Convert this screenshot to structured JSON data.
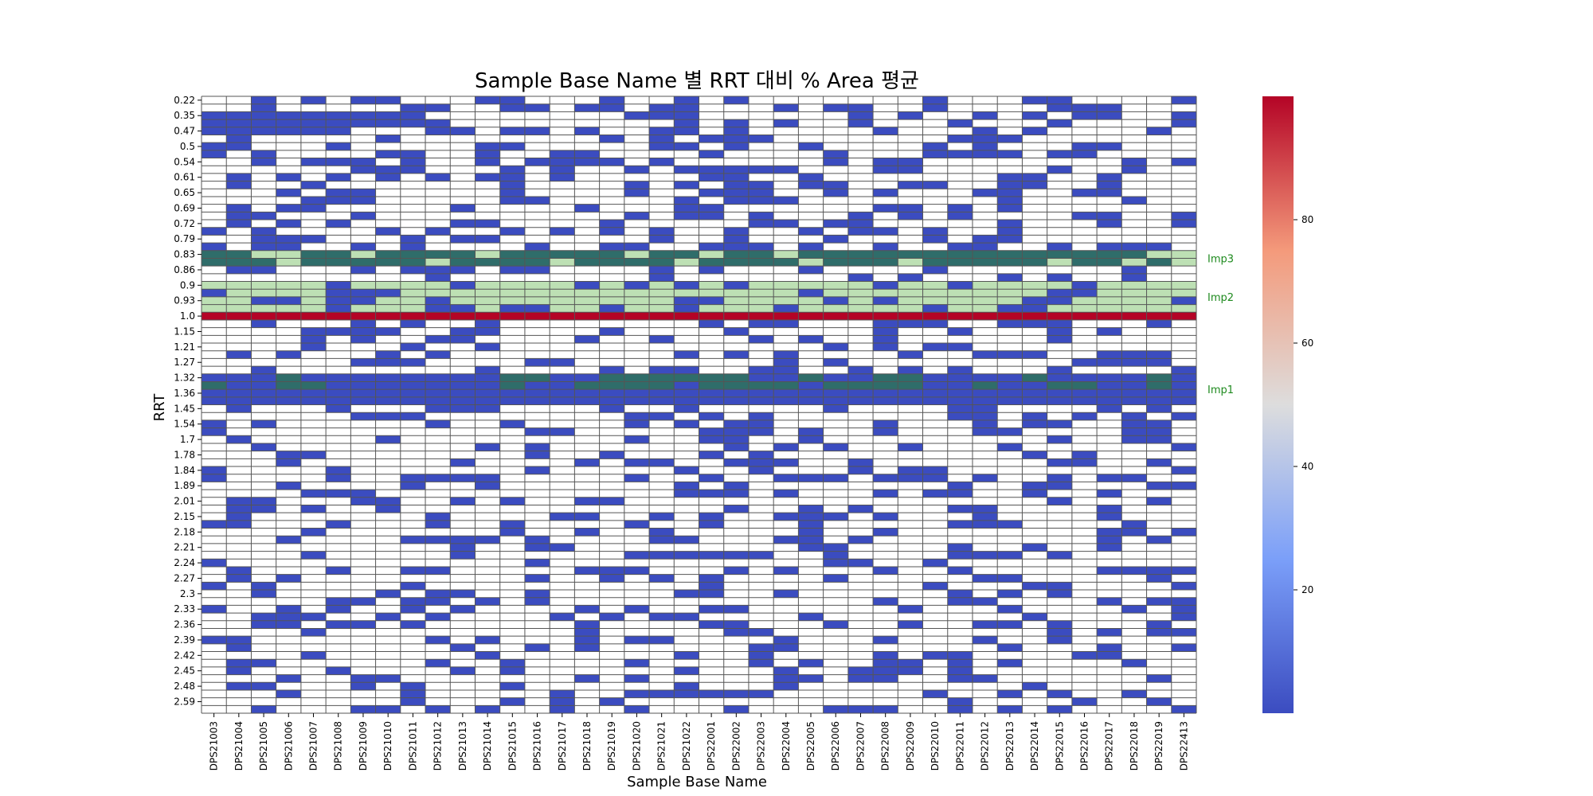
{
  "chart_data": {
    "type": "heatmap",
    "title": "Sample Base Name 별 RRT 대비 % Area 평균",
    "xlabel": "Sample Base Name",
    "ylabel": "RRT",
    "columns": [
      "DPS21003",
      "DPS21004",
      "DPS21005",
      "DPS21006",
      "DPS21007",
      "DPS21008",
      "DPS21009",
      "DPS21010",
      "DPS21011",
      "DPS21012",
      "DPS21013",
      "DPS21014",
      "DPS21015",
      "DPS21016",
      "DPS21017",
      "DPS21018",
      "DPS21019",
      "DPS21020",
      "DPS21021",
      "DPS21022",
      "DPS22001",
      "DPS22002",
      "DPS22003",
      "DPS22004",
      "DPS22005",
      "DPS22006",
      "DPS22007",
      "DPS22008",
      "DPS22009",
      "DPS22010",
      "DPS22011",
      "DPS22012",
      "DPS22013",
      "DPS22014",
      "DPS22015",
      "DPS22016",
      "DPS22017",
      "DPS22018",
      "DPS22019",
      "DPS22413"
    ],
    "ytick_labels": [
      "0.22",
      "0.35",
      "0.47",
      "0.5",
      "0.54",
      "0.61",
      "0.65",
      "0.69",
      "0.72",
      "0.79",
      "0.83",
      "0.86",
      "0.9",
      "0.93",
      "1.0",
      "1.15",
      "1.21",
      "1.27",
      "1.32",
      "1.36",
      "1.45",
      "1.54",
      "1.7",
      "1.78",
      "1.84",
      "1.89",
      "2.01",
      "2.15",
      "2.18",
      "2.21",
      "2.24",
      "2.27",
      "2.3",
      "2.33",
      "2.36",
      "2.39",
      "2.42",
      "2.45",
      "2.48",
      "2.59"
    ],
    "highlight_bands": [
      {
        "label": "Imp3",
        "rrt": "0.83"
      },
      {
        "label": "Imp2",
        "rrt": "0.9 – 0.93"
      },
      {
        "label": "Imp1",
        "rrt": "1.32"
      }
    ],
    "colorbar": {
      "colormap": "coolwarm",
      "min": 0,
      "max": 100,
      "ticks": [
        20,
        40,
        60,
        80
      ]
    },
    "main_peak": {
      "rrt": "1.0",
      "value_approx": 99.5
    },
    "typical_values": {
      "Imp1": [
        0.42,
        0.4,
        0.36,
        0.42,
        0.52,
        0.43,
        0.46,
        0.4,
        0.45,
        0.51,
        0.45,
        0.44,
        0.36,
        0.46,
        0.46,
        0.43,
        0.45,
        0.45,
        0.51,
        0.46,
        0.5,
        0.47,
        0.52,
        0.52,
        0.5,
        0.46,
        0.4,
        0.42,
        0.44,
        0.36,
        0.48,
        0.47,
        0.41,
        0.41,
        0.51,
        0.49,
        0.51,
        0.47,
        0.35,
        0.31
      ],
      "Imp3": [
        0.01,
        0.01,
        0.05,
        0.01,
        0.01,
        0.01,
        0.01,
        0.01,
        0.01,
        0.01,
        0.01,
        0.01,
        0.01,
        0.01,
        0.01,
        0.01,
        0.01,
        0.01,
        0.01,
        0.02,
        0.01,
        0.01,
        0.01,
        0.01,
        0.01,
        0.01,
        0.01,
        0.01,
        0.01,
        0.01,
        0.01,
        0.01,
        0.01,
        0.01,
        0.02,
        0.02,
        0.01,
        0.01,
        0.0,
        0.02
      ],
      "Imp2": [
        0.0,
        0.0,
        0.0,
        0.0,
        0.0,
        0.0,
        0.0,
        0.0,
        0.0,
        0.0,
        0.0,
        0.0,
        0.0,
        0.0,
        0.0,
        0.0,
        0.0,
        0.0,
        0.0,
        0.0,
        0.0,
        0.0,
        0.0,
        0.0,
        0.0,
        0.0,
        0.0,
        0.0,
        0.0,
        0.0,
        0.0,
        0.0,
        0.0,
        0.0,
        0.0,
        0.0,
        0.0,
        0.0,
        0.0,
        0.01
      ]
    },
    "grid": true,
    "legend": "none"
  }
}
